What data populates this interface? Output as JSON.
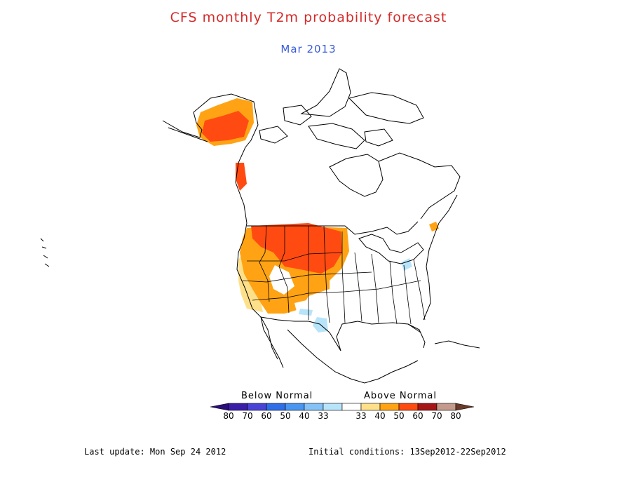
{
  "header": {
    "title": "CFS monthly T2m probability forecast",
    "subtitle": "Mar 2013"
  },
  "legend": {
    "below_label": "Below Normal",
    "above_label": "Above Normal",
    "categories": [
      {
        "label": "80",
        "color": "#3b1ea8"
      },
      {
        "label": "70",
        "color": "#4a44d6"
      },
      {
        "label": "60",
        "color": "#2f6ee6"
      },
      {
        "label": "50",
        "color": "#4a95f0"
      },
      {
        "label": "40",
        "color": "#84c2f7"
      },
      {
        "label": "33",
        "color": "#b8e4fa"
      },
      {
        "label": "33",
        "color": "#ffffff"
      },
      {
        "label": "40",
        "color": "#ffe08a"
      },
      {
        "label": "50",
        "color": "#ffa314"
      },
      {
        "label": "60",
        "color": "#ff4b12"
      },
      {
        "label": "70",
        "color": "#a51616"
      },
      {
        "label": "80",
        "color": "#c49a8c"
      }
    ],
    "end_low_color": "#2b0e7a",
    "end_high_color": "#6b3a2a"
  },
  "footer": {
    "last_update": "Last update: Mon Sep 24 2012",
    "initial_conditions": "Initial conditions: 13Sep2012-22Sep2012"
  },
  "map_colors": {
    "above_40": "#ffe08a",
    "above_50": "#ffa314",
    "above_60": "#ff4b12",
    "below_33": "#b8e4fa",
    "coast": "#000000"
  }
}
